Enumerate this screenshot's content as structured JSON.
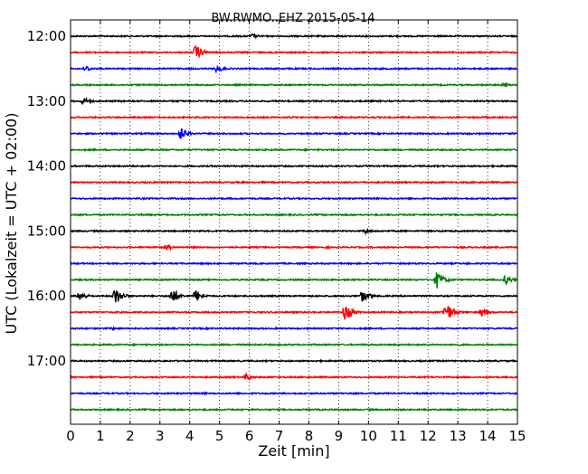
{
  "chart_data": {
    "type": "line",
    "title": "BW.RWMO..EHZ 2015-05-14",
    "xlabel": "Zeit  [min]",
    "ylabel": "UTC (Lokalzeit = UTC + 02:00)",
    "xlim": [
      0,
      15
    ],
    "x_ticks": [
      "0",
      "1",
      "2",
      "3",
      "4",
      "5",
      "6",
      "7",
      "8",
      "9",
      "10",
      "11",
      "12",
      "13",
      "14",
      "15"
    ],
    "y_ticks": [
      "12:00",
      "13:00",
      "14:00",
      "15:00",
      "16:00",
      "17:00"
    ],
    "grid": "vertical dotted",
    "trace_colors": [
      "#000000",
      "#ff0000",
      "#0000ff",
      "#008000"
    ],
    "traces": [
      {
        "start": "12:00",
        "events": [
          {
            "t": 6.1,
            "amp": 0.3
          }
        ]
      },
      {
        "start": "12:15",
        "events": [
          {
            "t": 4.2,
            "amp": 1.0
          }
        ]
      },
      {
        "start": "12:30",
        "events": [
          {
            "t": 0.5,
            "amp": 0.4
          },
          {
            "t": 4.9,
            "amp": 0.5
          }
        ]
      },
      {
        "start": "12:45",
        "events": [
          {
            "t": 14.5,
            "amp": 0.3
          }
        ]
      },
      {
        "start": "13:00",
        "events": [
          {
            "t": 0.4,
            "amp": 0.5
          }
        ]
      },
      {
        "start": "13:15",
        "events": [
          {
            "t": 7.4,
            "amp": 0.15
          },
          {
            "t": 13.9,
            "amp": 0.15
          }
        ]
      },
      {
        "start": "13:30",
        "events": [
          {
            "t": 3.7,
            "amp": 0.8
          },
          {
            "t": 13.3,
            "amp": 0.15
          }
        ]
      },
      {
        "start": "13:45",
        "events": []
      },
      {
        "start": "14:00",
        "events": []
      },
      {
        "start": "14:15",
        "events": []
      },
      {
        "start": "14:30",
        "events": [
          {
            "t": 6.3,
            "amp": 0.1
          }
        ]
      },
      {
        "start": "14:45",
        "events": [
          {
            "t": 2.3,
            "amp": 0.1
          }
        ]
      },
      {
        "start": "15:00",
        "events": [
          {
            "t": 9.9,
            "amp": 0.35
          }
        ]
      },
      {
        "start": "15:15",
        "events": [
          {
            "t": 3.2,
            "amp": 0.45
          },
          {
            "t": 8.6,
            "amp": 0.15
          }
        ]
      },
      {
        "start": "15:30",
        "events": [
          {
            "t": 13.3,
            "amp": 0.15
          }
        ]
      },
      {
        "start": "15:45",
        "events": [
          {
            "t": 12.3,
            "amp": 1.1
          },
          {
            "t": 14.6,
            "amp": 0.6
          }
        ]
      },
      {
        "start": "16:00",
        "events": [
          {
            "t": 0.3,
            "amp": 0.6
          },
          {
            "t": 1.5,
            "amp": 1.1
          },
          {
            "t": 3.4,
            "amp": 1.0
          },
          {
            "t": 4.2,
            "amp": 0.8
          },
          {
            "t": 9.8,
            "amp": 0.8
          }
        ]
      },
      {
        "start": "16:15",
        "events": [
          {
            "t": 9.2,
            "amp": 1.1
          },
          {
            "t": 12.6,
            "amp": 1.3
          },
          {
            "t": 13.8,
            "amp": 0.6
          }
        ]
      },
      {
        "start": "16:30",
        "events": [
          {
            "t": 1.4,
            "amp": 0.2
          }
        ]
      },
      {
        "start": "16:45",
        "events": []
      },
      {
        "start": "17:00",
        "events": []
      },
      {
        "start": "17:15",
        "events": [
          {
            "t": 5.9,
            "amp": 0.45
          }
        ]
      },
      {
        "start": "17:30",
        "events": [
          {
            "t": 4.5,
            "amp": 0.12
          }
        ]
      },
      {
        "start": "17:45",
        "events": []
      }
    ]
  }
}
